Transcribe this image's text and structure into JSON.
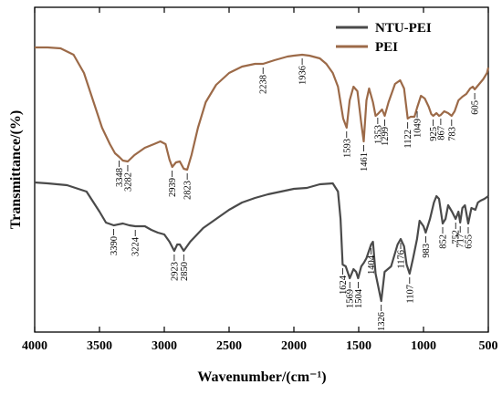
{
  "chart_data": {
    "type": "line",
    "title": "",
    "xlabel": "Wavenumber/(cm⁻¹)",
    "ylabel": "Transmittance/(%)",
    "xlim": [
      4000,
      500
    ],
    "x_reversed": true,
    "xticks": [
      4000,
      3500,
      3000,
      2500,
      2000,
      1500,
      1000,
      500
    ],
    "y_ticks_shown": false,
    "grid": false,
    "legend_position": "top-right",
    "series": [
      {
        "name": "NTU-PEI",
        "color": "#4a4a4a",
        "points": [
          [
            4000,
            200
          ],
          [
            3900,
            201
          ],
          [
            3750,
            203
          ],
          [
            3600,
            210
          ],
          [
            3500,
            232
          ],
          [
            3450,
            244
          ],
          [
            3390,
            247
          ],
          [
            3320,
            245
          ],
          [
            3270,
            247
          ],
          [
            3224,
            248
          ],
          [
            3150,
            248
          ],
          [
            3100,
            252
          ],
          [
            3050,
            255
          ],
          [
            3000,
            257
          ],
          [
            2960,
            265
          ],
          [
            2923,
            275
          ],
          [
            2900,
            268
          ],
          [
            2880,
            268
          ],
          [
            2850,
            275
          ],
          [
            2800,
            265
          ],
          [
            2700,
            250
          ],
          [
            2600,
            240
          ],
          [
            2500,
            230
          ],
          [
            2400,
            222
          ],
          [
            2300,
            217
          ],
          [
            2200,
            213
          ],
          [
            2100,
            210
          ],
          [
            2000,
            207
          ],
          [
            1900,
            206
          ],
          [
            1800,
            202
          ],
          [
            1700,
            201
          ],
          [
            1660,
            210
          ],
          [
            1640,
            240
          ],
          [
            1624,
            290
          ],
          [
            1600,
            292
          ],
          [
            1569,
            305
          ],
          [
            1540,
            295
          ],
          [
            1520,
            298
          ],
          [
            1504,
            305
          ],
          [
            1480,
            292
          ],
          [
            1460,
            288
          ],
          [
            1440,
            283
          ],
          [
            1404,
            268
          ],
          [
            1390,
            265
          ],
          [
            1370,
            300
          ],
          [
            1326,
            330
          ],
          [
            1300,
            298
          ],
          [
            1250,
            292
          ],
          [
            1200,
            268
          ],
          [
            1176,
            262
          ],
          [
            1150,
            270
          ],
          [
            1130,
            290
          ],
          [
            1107,
            300
          ],
          [
            1080,
            283
          ],
          [
            1050,
            262
          ],
          [
            1030,
            242
          ],
          [
            1000,
            248
          ],
          [
            983,
            255
          ],
          [
            950,
            240
          ],
          [
            920,
            222
          ],
          [
            900,
            215
          ],
          [
            880,
            218
          ],
          [
            852,
            245
          ],
          [
            830,
            240
          ],
          [
            810,
            225
          ],
          [
            780,
            232
          ],
          [
            752,
            240
          ],
          [
            730,
            232
          ],
          [
            717,
            244
          ],
          [
            700,
            228
          ],
          [
            680,
            225
          ],
          [
            655,
            245
          ],
          [
            630,
            228
          ],
          [
            600,
            230
          ],
          [
            580,
            222
          ],
          [
            560,
            220
          ],
          [
            530,
            218
          ],
          [
            500,
            215
          ]
        ]
      },
      {
        "name": "PEI",
        "color": "#9c6a48",
        "points": [
          [
            4000,
            52
          ],
          [
            3900,
            52
          ],
          [
            3800,
            53
          ],
          [
            3700,
            60
          ],
          [
            3620,
            80
          ],
          [
            3550,
            110
          ],
          [
            3480,
            140
          ],
          [
            3420,
            158
          ],
          [
            3380,
            168
          ],
          [
            3348,
            172
          ],
          [
            3320,
            176
          ],
          [
            3282,
            177
          ],
          [
            3230,
            170
          ],
          [
            3150,
            162
          ],
          [
            3080,
            158
          ],
          [
            3030,
            155
          ],
          [
            2990,
            158
          ],
          [
            2960,
            175
          ],
          [
            2939,
            183
          ],
          [
            2910,
            178
          ],
          [
            2880,
            177
          ],
          [
            2850,
            185
          ],
          [
            2823,
            186
          ],
          [
            2790,
            170
          ],
          [
            2740,
            140
          ],
          [
            2680,
            112
          ],
          [
            2600,
            93
          ],
          [
            2500,
            80
          ],
          [
            2400,
            73
          ],
          [
            2300,
            70
          ],
          [
            2238,
            70
          ],
          [
            2150,
            66
          ],
          [
            2050,
            62
          ],
          [
            2000,
            61
          ],
          [
            1936,
            60
          ],
          [
            1880,
            61
          ],
          [
            1800,
            64
          ],
          [
            1750,
            70
          ],
          [
            1700,
            80
          ],
          [
            1660,
            95
          ],
          [
            1620,
            130
          ],
          [
            1593,
            140
          ],
          [
            1570,
            110
          ],
          [
            1540,
            95
          ],
          [
            1510,
            100
          ],
          [
            1480,
            135
          ],
          [
            1461,
            155
          ],
          [
            1440,
            110
          ],
          [
            1420,
            97
          ],
          [
            1390,
            112
          ],
          [
            1370,
            127
          ],
          [
            1353,
            125
          ],
          [
            1320,
            120
          ],
          [
            1299,
            127
          ],
          [
            1270,
            112
          ],
          [
            1220,
            92
          ],
          [
            1180,
            88
          ],
          [
            1150,
            97
          ],
          [
            1122,
            130
          ],
          [
            1100,
            128
          ],
          [
            1070,
            128
          ],
          [
            1049,
            118
          ],
          [
            1020,
            105
          ],
          [
            990,
            108
          ],
          [
            960,
            117
          ],
          [
            940,
            125
          ],
          [
            925,
            127
          ],
          [
            900,
            124
          ],
          [
            880,
            127
          ],
          [
            867,
            126
          ],
          [
            840,
            122
          ],
          [
            810,
            124
          ],
          [
            783,
            127
          ],
          [
            760,
            122
          ],
          [
            730,
            110
          ],
          [
            700,
            106
          ],
          [
            670,
            103
          ],
          [
            640,
            97
          ],
          [
            620,
            95
          ],
          [
            605,
            98
          ],
          [
            570,
            92
          ],
          [
            540,
            87
          ],
          [
            510,
            80
          ],
          [
            500,
            74
          ]
        ]
      }
    ],
    "peak_labels": [
      {
        "series": "PEI",
        "text": "3348",
        "x": 3348
      },
      {
        "series": "PEI",
        "text": "3282",
        "x": 3282
      },
      {
        "series": "PEI",
        "text": "2939",
        "x": 2939
      },
      {
        "series": "PEI",
        "text": "2823",
        "x": 2823
      },
      {
        "series": "PEI",
        "text": "2238",
        "x": 2238
      },
      {
        "series": "PEI",
        "text": "1936",
        "x": 1936
      },
      {
        "series": "PEI",
        "text": "1593",
        "x": 1593
      },
      {
        "series": "PEI",
        "text": "1461",
        "x": 1461
      },
      {
        "series": "PEI",
        "text": "1353",
        "x": 1353
      },
      {
        "series": "PEI",
        "text": "1299",
        "x": 1299
      },
      {
        "series": "PEI",
        "text": "1122",
        "x": 1122
      },
      {
        "series": "PEI",
        "text": "1049",
        "x": 1049
      },
      {
        "series": "PEI",
        "text": "925",
        "x": 925
      },
      {
        "series": "PEI",
        "text": "867",
        "x": 867
      },
      {
        "series": "PEI",
        "text": "783",
        "x": 783
      },
      {
        "series": "PEI",
        "text": "605",
        "x": 605
      },
      {
        "series": "NTU-PEI",
        "text": "3390",
        "x": 3390
      },
      {
        "series": "NTU-PEI",
        "text": "3224",
        "x": 3224
      },
      {
        "series": "NTU-PEI",
        "text": "2923",
        "x": 2923
      },
      {
        "series": "NTU-PEI",
        "text": "2850",
        "x": 2850
      },
      {
        "series": "NTU-PEI",
        "text": "1624",
        "x": 1624
      },
      {
        "series": "NTU-PEI",
        "text": "1569",
        "x": 1569
      },
      {
        "series": "NTU-PEI",
        "text": "1504",
        "x": 1504
      },
      {
        "series": "NTU-PEI",
        "text": "1404",
        "x": 1404
      },
      {
        "series": "NTU-PEI",
        "text": "1326",
        "x": 1326
      },
      {
        "series": "NTU-PEI",
        "text": "1176",
        "x": 1176
      },
      {
        "series": "NTU-PEI",
        "text": "1107",
        "x": 1107
      },
      {
        "series": "NTU-PEI",
        "text": "983",
        "x": 983
      },
      {
        "series": "NTU-PEI",
        "text": "852",
        "x": 852
      },
      {
        "series": "NTU-PEI",
        "text": "752",
        "x": 752
      },
      {
        "series": "NTU-PEI",
        "text": "717",
        "x": 717
      },
      {
        "series": "NTU-PEI",
        "text": "655",
        "x": 655
      }
    ]
  }
}
